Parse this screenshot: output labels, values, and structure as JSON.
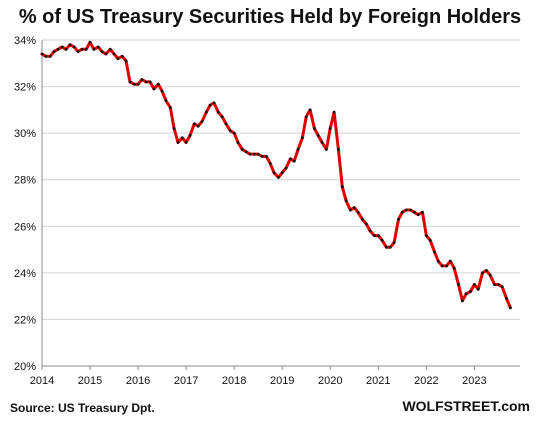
{
  "chart_data": {
    "type": "line",
    "title": "% of US Treasury Securities Held by Foreign Holders",
    "xlabel": "",
    "ylabel": "",
    "x_ticks": [
      "2014",
      "2015",
      "2016",
      "2017",
      "2018",
      "2019",
      "2020",
      "2021",
      "2022",
      "2023"
    ],
    "y_ticks": [
      "20%",
      "22%",
      "24%",
      "26%",
      "28%",
      "30%",
      "32%",
      "34%"
    ],
    "xlim": [
      2014,
      2023.95
    ],
    "ylim": [
      20,
      34
    ],
    "grid": "horizontal",
    "series": [
      {
        "color": "#e00000",
        "marker_color": "#111111",
        "points": [
          [
            2014.0,
            33.4
          ],
          [
            2014.08,
            33.3
          ],
          [
            2014.17,
            33.3
          ],
          [
            2014.25,
            33.5
          ],
          [
            2014.33,
            33.6
          ],
          [
            2014.42,
            33.7
          ],
          [
            2014.5,
            33.6
          ],
          [
            2014.58,
            33.8
          ],
          [
            2014.67,
            33.7
          ],
          [
            2014.75,
            33.5
          ],
          [
            2014.83,
            33.6
          ],
          [
            2014.92,
            33.6
          ],
          [
            2015.0,
            33.9
          ],
          [
            2015.08,
            33.6
          ],
          [
            2015.17,
            33.7
          ],
          [
            2015.25,
            33.5
          ],
          [
            2015.33,
            33.4
          ],
          [
            2015.42,
            33.6
          ],
          [
            2015.5,
            33.4
          ],
          [
            2015.58,
            33.2
          ],
          [
            2015.67,
            33.3
          ],
          [
            2015.75,
            33.1
          ],
          [
            2015.83,
            32.2
          ],
          [
            2015.92,
            32.1
          ],
          [
            2016.0,
            32.1
          ],
          [
            2016.08,
            32.3
          ],
          [
            2016.17,
            32.2
          ],
          [
            2016.25,
            32.2
          ],
          [
            2016.33,
            31.9
          ],
          [
            2016.42,
            32.1
          ],
          [
            2016.5,
            31.8
          ],
          [
            2016.58,
            31.4
          ],
          [
            2016.67,
            31.1
          ],
          [
            2016.75,
            30.2
          ],
          [
            2016.83,
            29.6
          ],
          [
            2016.92,
            29.8
          ],
          [
            2017.0,
            29.6
          ],
          [
            2017.08,
            29.9
          ],
          [
            2017.17,
            30.4
          ],
          [
            2017.25,
            30.3
          ],
          [
            2017.33,
            30.5
          ],
          [
            2017.42,
            30.9
          ],
          [
            2017.5,
            31.2
          ],
          [
            2017.58,
            31.3
          ],
          [
            2017.67,
            30.9
          ],
          [
            2017.75,
            30.7
          ],
          [
            2017.83,
            30.4
          ],
          [
            2017.92,
            30.1
          ],
          [
            2018.0,
            30.0
          ],
          [
            2018.08,
            29.6
          ],
          [
            2018.17,
            29.3
          ],
          [
            2018.25,
            29.2
          ],
          [
            2018.33,
            29.1
          ],
          [
            2018.42,
            29.1
          ],
          [
            2018.5,
            29.1
          ],
          [
            2018.58,
            29.0
          ],
          [
            2018.67,
            29.0
          ],
          [
            2018.75,
            28.7
          ],
          [
            2018.83,
            28.3
          ],
          [
            2018.92,
            28.1
          ],
          [
            2019.0,
            28.3
          ],
          [
            2019.08,
            28.5
          ],
          [
            2019.17,
            28.9
          ],
          [
            2019.25,
            28.8
          ],
          [
            2019.33,
            29.3
          ],
          [
            2019.42,
            29.8
          ],
          [
            2019.5,
            30.7
          ],
          [
            2019.58,
            31.0
          ],
          [
            2019.67,
            30.2
          ],
          [
            2019.75,
            29.9
          ],
          [
            2019.83,
            29.6
          ],
          [
            2019.92,
            29.3
          ],
          [
            2020.0,
            30.2
          ],
          [
            2020.08,
            30.9
          ],
          [
            2020.17,
            29.3
          ],
          [
            2020.25,
            27.7
          ],
          [
            2020.33,
            27.1
          ],
          [
            2020.42,
            26.7
          ],
          [
            2020.5,
            26.8
          ],
          [
            2020.58,
            26.6
          ],
          [
            2020.67,
            26.3
          ],
          [
            2020.75,
            26.1
          ],
          [
            2020.83,
            25.8
          ],
          [
            2020.92,
            25.6
          ],
          [
            2021.0,
            25.6
          ],
          [
            2021.08,
            25.4
          ],
          [
            2021.17,
            25.1
          ],
          [
            2021.25,
            25.1
          ],
          [
            2021.33,
            25.3
          ],
          [
            2021.42,
            26.3
          ],
          [
            2021.5,
            26.6
          ],
          [
            2021.58,
            26.7
          ],
          [
            2021.67,
            26.7
          ],
          [
            2021.75,
            26.6
          ],
          [
            2021.83,
            26.5
          ],
          [
            2021.92,
            26.6
          ],
          [
            2022.0,
            25.6
          ],
          [
            2022.08,
            25.4
          ],
          [
            2022.17,
            24.9
          ],
          [
            2022.25,
            24.5
          ],
          [
            2022.33,
            24.3
          ],
          [
            2022.42,
            24.3
          ],
          [
            2022.5,
            24.5
          ],
          [
            2022.58,
            24.2
          ],
          [
            2022.67,
            23.5
          ],
          [
            2022.75,
            22.8
          ],
          [
            2022.83,
            23.1
          ],
          [
            2022.92,
            23.2
          ],
          [
            2023.0,
            23.5
          ],
          [
            2023.08,
            23.3
          ],
          [
            2023.17,
            24.0
          ],
          [
            2023.25,
            24.1
          ],
          [
            2023.33,
            23.9
          ],
          [
            2023.42,
            23.5
          ],
          [
            2023.5,
            23.5
          ],
          [
            2023.58,
            23.4
          ],
          [
            2023.67,
            22.9
          ],
          [
            2023.75,
            22.5
          ]
        ]
      }
    ]
  },
  "footer": {
    "source": "Source: US Treasury  Dpt.",
    "brand": "WOLFSTREET.com"
  }
}
